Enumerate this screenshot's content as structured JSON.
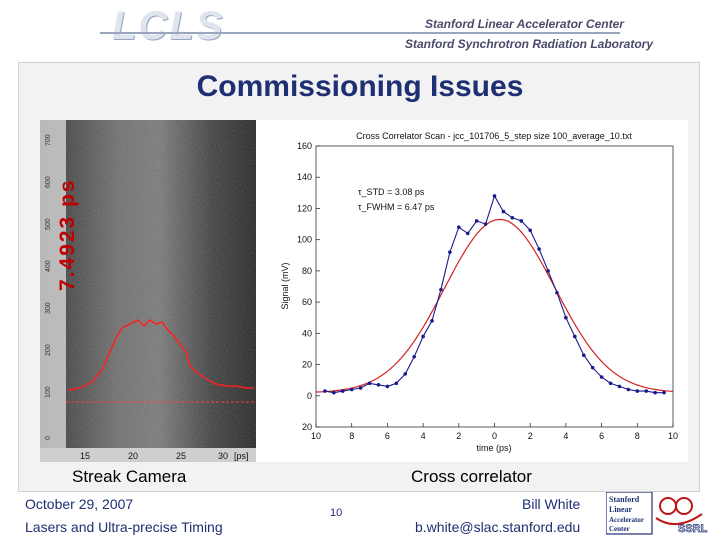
{
  "header": {
    "logo_text": "LCLS",
    "institution_line1": "Stanford Linear Accelerator Center",
    "institution_line2": "Stanford Synchrotron Radiation Laboratory"
  },
  "slide": {
    "title": "Commissioning Issues",
    "caption_left": "Streak Camera",
    "caption_right": "Cross correlator"
  },
  "streak": {
    "rotated_label": "7.4923 ps",
    "axis_unit": "[ps]",
    "x_ticks": [
      "15",
      "20",
      "25",
      "30"
    ],
    "y_ticks": [
      "700",
      "600",
      "500",
      "400",
      "300",
      "200",
      "100",
      "0"
    ]
  },
  "chart_data": {
    "type": "scatter",
    "title": "Cross Correlator Scan - jcc_101706_5_step size 100_average_10.txt",
    "xlabel": "time (ps)",
    "ylabel": "Signal (mV)",
    "xlim": [
      -10,
      10
    ],
    "ylim": [
      -20,
      160
    ],
    "x_ticks": [
      -10,
      -8,
      -6,
      -4,
      -2,
      0,
      2,
      4,
      6,
      8,
      10
    ],
    "x_tick_labels": [
      "10",
      "8",
      "6",
      "4",
      "2",
      "0",
      "2",
      "4",
      "6",
      "8",
      "10"
    ],
    "y_ticks": [
      -20,
      0,
      20,
      40,
      60,
      80,
      100,
      120,
      140,
      160
    ],
    "y_tick_labels": [
      "20",
      "0",
      "20",
      "40",
      "60",
      "80",
      "100",
      "120",
      "140",
      "160"
    ],
    "annotation_line1": "τ_STD = 3.08 ps",
    "annotation_line2": "τ_FWHM = 6.47 ps",
    "series": [
      {
        "name": "data",
        "color": "#1a1a8c",
        "x": [
          -9.5,
          -9.0,
          -8.5,
          -8.0,
          -7.5,
          -7.0,
          -6.5,
          -6.0,
          -5.5,
          -5.0,
          -4.5,
          -4.0,
          -3.5,
          -3.0,
          -2.5,
          -2.0,
          -1.5,
          -1.0,
          -0.5,
          0.0,
          0.5,
          1.0,
          1.5,
          2.0,
          2.5,
          3.0,
          3.5,
          4.0,
          4.5,
          5.0,
          5.5,
          6.0,
          6.5,
          7.0,
          7.5,
          8.0,
          8.5,
          9.0,
          9.5
        ],
        "y": [
          3,
          2,
          3,
          4,
          5,
          8,
          7,
          6,
          8,
          14,
          25,
          38,
          48,
          68,
          92,
          108,
          104,
          112,
          110,
          128,
          118,
          114,
          112,
          106,
          94,
          80,
          66,
          50,
          38,
          26,
          18,
          12,
          8,
          6,
          4,
          3,
          3,
          2,
          2
        ]
      },
      {
        "name": "gaussian fit",
        "color": "#d42020",
        "mu": 0.3,
        "sigma": 3.08,
        "amplitude": 111,
        "offset": 2
      }
    ]
  },
  "footer": {
    "date": "October 29, 2007",
    "session": "Lasers and Ultra-precise Timing",
    "page": "10",
    "author": "Bill White",
    "email": "b.white@slac.stanford.edu",
    "logo_line1": "Stanford",
    "logo_line2": "Linear",
    "logo_line3": "Accelerator",
    "logo_line4": "Center",
    "logo_ssrl": "SSRL"
  }
}
